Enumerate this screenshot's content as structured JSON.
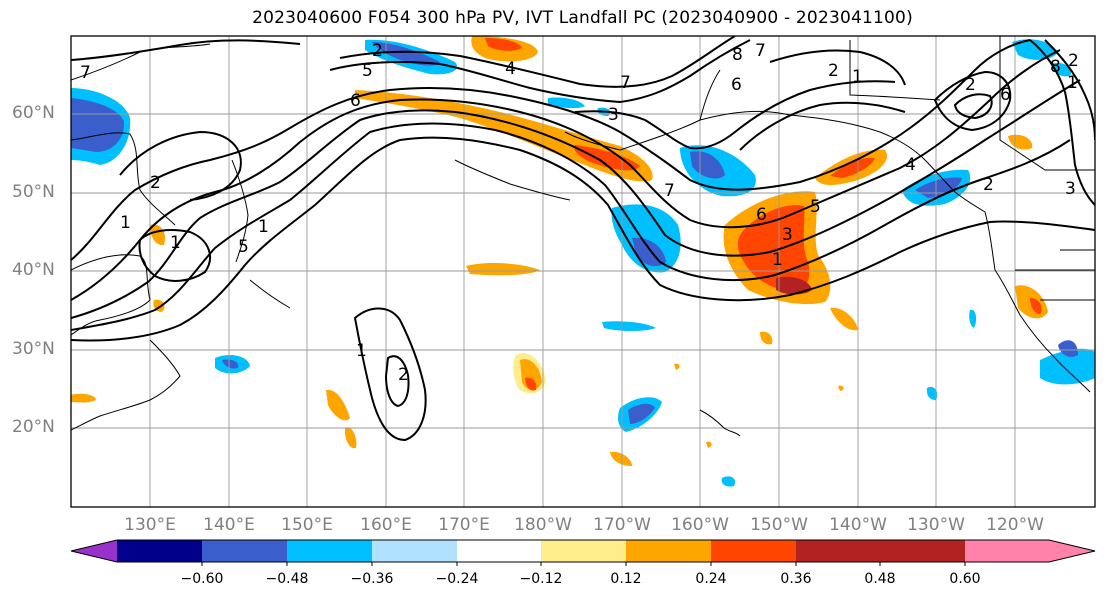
{
  "title": "2023040600 F054 300 hPa PV, IVT Landfall PC (2023040900 - 2023041100)",
  "lat_labels": [
    "60°N",
    "50°N",
    "40°N",
    "30°N",
    "20°N"
  ],
  "lon_labels": [
    "130°E",
    "140°E",
    "150°E",
    "160°E",
    "170°E",
    "180°W",
    "170°W",
    "160°W",
    "150°W",
    "140°W",
    "130°W",
    "120°W"
  ],
  "colorbar": {
    "colors": [
      "#9932cc",
      "#00008b",
      "#3a5fcd",
      "#00bfff",
      "#b0e2ff",
      "#ffffff",
      "#ffec8b",
      "#ffa500",
      "#ff4500",
      "#b22222",
      "#ff82ab"
    ],
    "tick_labels": [
      "−0.60",
      "−0.48",
      "−0.36",
      "−0.24",
      "−0.12",
      "0.12",
      "0.24",
      "0.36",
      "0.48",
      "0.60"
    ]
  },
  "contour_labels": [
    {
      "text": "1"
    },
    {
      "text": "2"
    },
    {
      "text": "5"
    },
    {
      "text": "7"
    },
    {
      "text": "6"
    },
    {
      "text": "3"
    },
    {
      "text": "8"
    },
    {
      "text": "7"
    },
    {
      "text": "2"
    },
    {
      "text": "1"
    },
    {
      "text": "2"
    },
    {
      "text": "6"
    },
    {
      "text": "8"
    },
    {
      "text": "2"
    },
    {
      "text": "4"
    },
    {
      "text": "1"
    },
    {
      "text": "7"
    },
    {
      "text": "6"
    },
    {
      "text": "3"
    },
    {
      "text": "5"
    },
    {
      "text": "1"
    },
    {
      "text": "1"
    },
    {
      "text": "2"
    },
    {
      "text": "2"
    },
    {
      "text": "1"
    },
    {
      "text": "5"
    },
    {
      "text": "6"
    },
    {
      "text": "4"
    },
    {
      "text": "3"
    },
    {
      "text": "1"
    },
    {
      "text": "2"
    },
    {
      "text": "7"
    }
  ]
}
